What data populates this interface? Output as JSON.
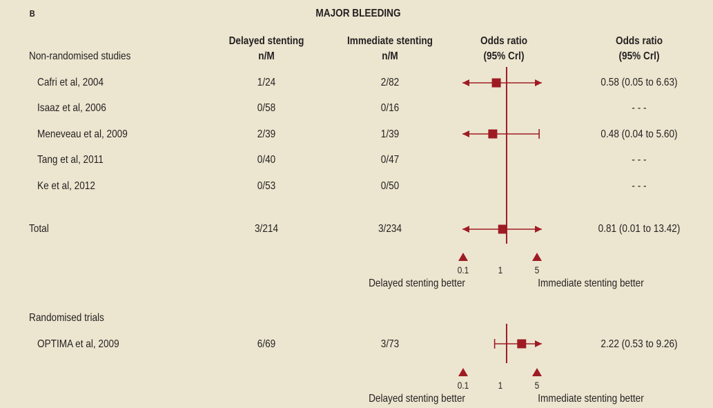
{
  "panel_label": "B",
  "title": "MAJOR BLEEDING",
  "headers": {
    "delayed": "Delayed stenting",
    "delayed_sub": "n/M",
    "immediate": "Immediate stenting",
    "immediate_sub": "n/M",
    "or": "Odds ratio",
    "or_sub": "(95% Crl)",
    "or2": "Odds ratio",
    "or2_sub": "(95% Crl)"
  },
  "sections": [
    {
      "label": "Non-randomised studies",
      "rows": [
        {
          "study": "Cafri et al, 2004",
          "delayed": "1/24",
          "immediate": "2/82",
          "or_text": "0.58 (0.05 to 6.63)"
        },
        {
          "study": "Isaaz et al, 2006",
          "delayed": "0/58",
          "immediate": "0/16",
          "or_text": "- - -"
        },
        {
          "study": "Meneveau et al, 2009",
          "delayed": "2/39",
          "immediate": "1/39",
          "or_text": "0.48 (0.04 to 5.60)"
        },
        {
          "study": "Tang et al, 2011",
          "delayed": "0/40",
          "immediate": "0/47",
          "or_text": "- - -"
        },
        {
          "study": "Ke et al, 2012",
          "delayed": "0/53",
          "immediate": "0/50",
          "or_text": "- - -"
        }
      ],
      "total": {
        "study": "Total",
        "delayed": "3/214",
        "immediate": "3/234",
        "or_text": "0.81 (0.01 to 13.42)"
      },
      "axis": {
        "ticks": [
          "0.1",
          "1",
          "5"
        ],
        "left_label": "Delayed stenting better",
        "right_label": "Immediate stenting better"
      }
    },
    {
      "label": "Randomised trials",
      "rows": [
        {
          "study": "OPTIMA et al, 2009",
          "delayed": "6/69",
          "immediate": "3/73",
          "or_text": "2.22 (0.53 to 9.26)"
        }
      ],
      "axis": {
        "ticks": [
          "0.1",
          "1",
          "5"
        ],
        "left_label": "Delayed stenting better",
        "right_label": "Immediate stenting better"
      }
    }
  ],
  "chart_data": {
    "type": "forest",
    "title": "MAJOR BLEEDING",
    "scale": "log",
    "xlim": [
      0.1,
      5
    ],
    "null_value": 1,
    "color": "#9e1b24",
    "series": [
      {
        "label": "Cafri et al, 2004",
        "or": 0.58,
        "lo": 0.05,
        "hi": 6.63
      },
      {
        "label": "Isaaz et al, 2006",
        "or": null,
        "lo": null,
        "hi": null
      },
      {
        "label": "Meneveau et al, 2009",
        "or": 0.48,
        "lo": 0.04,
        "hi": 5.6
      },
      {
        "label": "Tang et al, 2011",
        "or": null,
        "lo": null,
        "hi": null
      },
      {
        "label": "Ke et al, 2012",
        "or": null,
        "lo": null,
        "hi": null
      },
      {
        "label": "Total",
        "or": 0.81,
        "lo": 0.01,
        "hi": 13.42
      },
      {
        "label": "OPTIMA et al, 2009",
        "or": 2.22,
        "lo": 0.53,
        "hi": 9.26
      }
    ]
  }
}
